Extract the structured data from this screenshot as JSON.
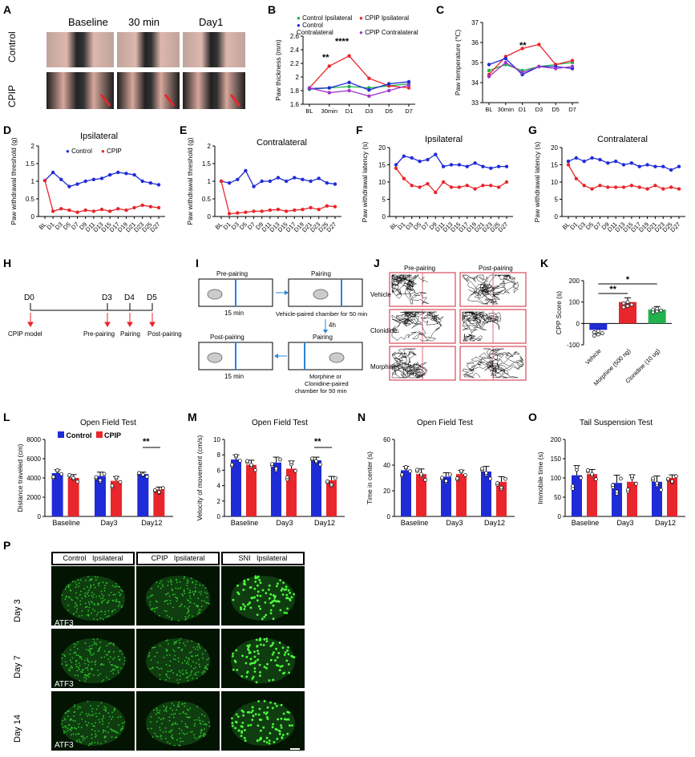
{
  "panels": {
    "A": {
      "letter": "A",
      "cols": [
        "Baseline",
        "30 min",
        "Day1"
      ],
      "rows": [
        "Control",
        "CPIP"
      ]
    },
    "B": {
      "letter": "B",
      "ylabel": "Paw thickness (mm)",
      "legend": [
        "Control Ipsilateral",
        "CPIP Ipsilateral",
        "Control Contralateral",
        "CPIP Contralateral"
      ],
      "sig": [
        "**",
        "****"
      ]
    },
    "C": {
      "letter": "C",
      "ylabel": "Paw temperature (℃)",
      "sig": [
        "**"
      ]
    },
    "D": {
      "letter": "D",
      "title": "Ipsilateral",
      "ylabel": "Paw withdrawal threshold (g)",
      "legend": [
        "Control",
        "CPIP"
      ]
    },
    "E": {
      "letter": "E",
      "title": "Contralateral",
      "ylabel": "Paw withdrawal threshold (g)"
    },
    "F": {
      "letter": "F",
      "title": "Ipsilateral",
      "ylabel": "Paw withdrawal latency (s)"
    },
    "G": {
      "letter": "G",
      "title": "Contralateral",
      "ylabel": "Paw withdrawal latency (s)"
    },
    "H": {
      "letter": "H",
      "days": [
        "D0",
        "D3",
        "D4",
        "D5"
      ],
      "events": [
        "CPIP model",
        "Pre-pairing",
        "Pairing",
        "Post-pairing"
      ]
    },
    "I": {
      "letter": "I",
      "boxes": [
        "Pre-pairing",
        "Pairing",
        "Post-pairing",
        "Pairing"
      ],
      "time1": "15 min",
      "note1": "Vehicle-paired chamber for 50 min",
      "gap": "4h",
      "time2": "15 min",
      "note2a": "Morphine or",
      "note2b": "Clonidine-paired",
      "note2c": "chamber for 50 min"
    },
    "J": {
      "letter": "J",
      "cols": [
        "Pre-pairing",
        "Post-pairing"
      ],
      "rows": [
        "Vehicle",
        "Clonidine",
        "Morphine"
      ]
    },
    "K": {
      "letter": "K",
      "ylabel": "CPP Score (s)",
      "groups": [
        "Vehicle",
        "Morphine (500 ng)",
        "Clonidine (10 ug)"
      ],
      "sig": [
        "**",
        "*"
      ]
    },
    "L": {
      "letter": "L",
      "title": "Open Field Test",
      "ylabel": "Distance traveled (cm)",
      "legend": [
        "Control",
        "CPIP"
      ],
      "sig": "**"
    },
    "M": {
      "letter": "M",
      "title": "Open Field Test",
      "ylabel": "Velocity of movement (cm/s)",
      "sig": "**"
    },
    "N": {
      "letter": "N",
      "title": "Open Field Test",
      "ylabel": "Time in center (s)"
    },
    "O": {
      "letter": "O",
      "title": "Tail Suspension Test",
      "ylabel": "Immobile time (s)"
    },
    "P": {
      "letter": "P",
      "cols": [
        "Control   Ipsilateral",
        "CPIP   Ipsilateral",
        "SNI   Ipsilateral"
      ],
      "rows": [
        "Day 3",
        "Day 7",
        "Day 14"
      ],
      "marker": "ATF3"
    }
  },
  "chart_data": [
    {
      "id": "B",
      "type": "line",
      "x": [
        "BL",
        "30min",
        "D1",
        "D3",
        "D5",
        "D7"
      ],
      "ylim": [
        1.6,
        2.6
      ],
      "yticks": [
        1.6,
        1.8,
        2.0,
        2.2,
        2.4,
        2.6
      ],
      "series": [
        {
          "name": "Control Ipsilateral",
          "color": "#22b14c",
          "values": [
            1.82,
            1.84,
            1.86,
            1.84,
            1.87,
            1.9
          ]
        },
        {
          "name": "CPIP Ipsilateral",
          "color": "#e8262b",
          "values": [
            1.84,
            2.16,
            2.31,
            1.98,
            1.87,
            1.84
          ]
        },
        {
          "name": "Control Contralateral",
          "color": "#1f2bd6",
          "values": [
            1.83,
            1.84,
            1.92,
            1.81,
            1.9,
            1.93
          ]
        },
        {
          "name": "CPIP Contralateral",
          "color": "#a134c9",
          "values": [
            1.84,
            1.77,
            1.8,
            1.72,
            1.8,
            1.88
          ]
        }
      ]
    },
    {
      "id": "C",
      "type": "line",
      "x": [
        "BL",
        "30min",
        "D1",
        "D3",
        "D5",
        "D7"
      ],
      "ylim": [
        33,
        37
      ],
      "yticks": [
        33,
        34,
        35,
        36,
        37
      ],
      "series": [
        {
          "name": "Control Ipsilateral",
          "color": "#22b14c",
          "values": [
            34.6,
            34.9,
            34.6,
            34.8,
            34.9,
            35.0
          ]
        },
        {
          "name": "CPIP Ipsilateral",
          "color": "#e8262b",
          "values": [
            34.4,
            35.3,
            35.7,
            35.9,
            34.9,
            35.1
          ]
        },
        {
          "name": "Control Contralateral",
          "color": "#1f2bd6",
          "values": [
            34.9,
            35.2,
            34.4,
            34.8,
            34.8,
            34.7
          ]
        },
        {
          "name": "CPIP Contralateral",
          "color": "#a134c9",
          "values": [
            34.3,
            35.0,
            34.5,
            34.8,
            34.7,
            34.8
          ]
        }
      ]
    },
    {
      "id": "D",
      "type": "line",
      "x": [
        "BL",
        "D1",
        "D3",
        "D5",
        "D7",
        "D9",
        "D11",
        "D13",
        "D15",
        "D17",
        "D19",
        "D21",
        "D23",
        "D25",
        "D27"
      ],
      "ylim": [
        0,
        2.0
      ],
      "yticks": [
        0,
        0.5,
        1.0,
        1.5,
        2.0
      ],
      "series": [
        {
          "name": "Control",
          "color": "#1f2bd6",
          "values": [
            1.02,
            1.25,
            1.05,
            0.85,
            0.92,
            1.0,
            1.05,
            1.08,
            1.18,
            1.25,
            1.22,
            1.18,
            1.0,
            0.95,
            0.9
          ]
        },
        {
          "name": "CPIP",
          "color": "#e8262b",
          "values": [
            1.02,
            0.15,
            0.22,
            0.18,
            0.12,
            0.18,
            0.15,
            0.2,
            0.15,
            0.22,
            0.18,
            0.25,
            0.32,
            0.28,
            0.25
          ]
        }
      ]
    },
    {
      "id": "E",
      "type": "line",
      "x": [
        "BL",
        "D1",
        "D3",
        "D5",
        "D7",
        "D9",
        "D11",
        "D13",
        "D15",
        "D17",
        "D19",
        "D21",
        "D23",
        "D25",
        "D27"
      ],
      "ylim": [
        0,
        2.0
      ],
      "yticks": [
        0,
        0.5,
        1.0,
        1.5,
        2.0
      ],
      "series": [
        {
          "name": "Control",
          "color": "#1f2bd6",
          "values": [
            1.0,
            0.95,
            1.05,
            1.3,
            0.85,
            1.0,
            1.0,
            1.1,
            1.0,
            1.1,
            1.05,
            1.0,
            1.08,
            0.95,
            0.92
          ]
        },
        {
          "name": "CPIP",
          "color": "#e8262b",
          "values": [
            1.0,
            0.08,
            0.1,
            0.12,
            0.15,
            0.15,
            0.18,
            0.2,
            0.15,
            0.18,
            0.2,
            0.25,
            0.2,
            0.3,
            0.28
          ]
        }
      ]
    },
    {
      "id": "F",
      "type": "line",
      "x": [
        "BL",
        "D1",
        "D3",
        "D5",
        "D7",
        "D9",
        "D11",
        "D13",
        "D15",
        "D17",
        "D19",
        "D21",
        "D23",
        "D25",
        "D27"
      ],
      "ylim": [
        0,
        20
      ],
      "yticks": [
        0,
        5,
        10,
        15,
        20
      ],
      "series": [
        {
          "name": "Control",
          "color": "#1f2bd6",
          "values": [
            15,
            17.5,
            17,
            16,
            16.5,
            18,
            14.5,
            15,
            15,
            14.5,
            15.5,
            14.5,
            14,
            14.5,
            14.5
          ]
        },
        {
          "name": "CPIP",
          "color": "#e8262b",
          "values": [
            14,
            11,
            9,
            8.5,
            9.5,
            7,
            10,
            8.5,
            8.5,
            9,
            8,
            9,
            9,
            8.5,
            10
          ]
        }
      ]
    },
    {
      "id": "G",
      "type": "line",
      "x": [
        "BL",
        "D1",
        "D3",
        "D5",
        "D7",
        "D9",
        "D11",
        "D13",
        "D15",
        "D17",
        "D19",
        "D21",
        "D23",
        "D25",
        "D27"
      ],
      "ylim": [
        0,
        20
      ],
      "yticks": [
        0,
        5,
        10,
        15,
        20
      ],
      "series": [
        {
          "name": "Control",
          "color": "#1f2bd6",
          "values": [
            16,
            17,
            16,
            17,
            16.5,
            15.5,
            16,
            15,
            15.5,
            14.5,
            15,
            14.5,
            14.5,
            13.5,
            14.5
          ]
        },
        {
          "name": "CPIP",
          "color": "#e8262b",
          "values": [
            15,
            11,
            9,
            8,
            9,
            8.5,
            8.5,
            8.5,
            9,
            8.5,
            8,
            9,
            8,
            8.5,
            8
          ]
        }
      ]
    },
    {
      "id": "K",
      "type": "bar",
      "categories": [
        "Vehicle",
        "Morphine (500 ng)",
        "Clonidine (10 ug)"
      ],
      "values": [
        -30,
        100,
        65
      ],
      "errors": [
        18,
        20,
        14
      ],
      "colors": [
        "#1f2bd6",
        "#e8262b",
        "#22b14c"
      ],
      "ylim": [
        -100,
        200
      ],
      "yticks": [
        -100,
        0,
        100,
        200
      ]
    },
    {
      "id": "L",
      "type": "bar",
      "categories": [
        "Baseline",
        "Day3",
        "Day12"
      ],
      "series": [
        {
          "name": "Control",
          "color": "#1f2bd6",
          "values": [
            4500,
            4200,
            4400
          ],
          "errors": [
            350,
            400,
            200
          ]
        },
        {
          "name": "CPIP",
          "color": "#e8262b",
          "values": [
            4000,
            3700,
            2800
          ],
          "errors": [
            350,
            450,
            250
          ]
        }
      ],
      "ylim": [
        0,
        8000
      ],
      "yticks": [
        0,
        2000,
        4000,
        6000,
        8000
      ]
    },
    {
      "id": "M",
      "type": "bar",
      "categories": [
        "Baseline",
        "Day3",
        "Day12"
      ],
      "series": [
        {
          "name": "Control",
          "color": "#1f2bd6",
          "values": [
            7.4,
            7.0,
            7.3
          ],
          "errors": [
            0.6,
            0.7,
            0.4
          ]
        },
        {
          "name": "CPIP",
          "color": "#e8262b",
          "values": [
            6.7,
            6.2,
            4.7
          ],
          "errors": [
            0.6,
            1.0,
            0.5
          ]
        }
      ],
      "ylim": [
        0,
        10
      ],
      "yticks": [
        0,
        2,
        4,
        6,
        8,
        10
      ]
    },
    {
      "id": "N",
      "type": "bar",
      "categories": [
        "Baseline",
        "Day3",
        "Day12"
      ],
      "series": [
        {
          "name": "Control",
          "color": "#1f2bd6",
          "values": [
            36,
            31,
            35
          ],
          "errors": [
            3,
            3,
            4
          ]
        },
        {
          "name": "CPIP",
          "color": "#e8262b",
          "values": [
            33,
            33,
            27
          ],
          "errors": [
            4,
            3,
            4
          ]
        }
      ],
      "ylim": [
        0,
        60
      ],
      "yticks": [
        0,
        20,
        40,
        60
      ]
    },
    {
      "id": "O",
      "type": "bar",
      "categories": [
        "Baseline",
        "Day3",
        "Day12"
      ],
      "series": [
        {
          "name": "Control",
          "color": "#1f2bd6",
          "values": [
            107,
            87,
            90
          ],
          "errors": [
            25,
            20,
            15
          ]
        },
        {
          "name": "CPIP",
          "color": "#e8262b",
          "values": [
            110,
            90,
            100
          ],
          "errors": [
            12,
            18,
            8
          ]
        }
      ],
      "ylim": [
        0,
        200
      ],
      "yticks": [
        0,
        50,
        100,
        150,
        200
      ]
    }
  ]
}
